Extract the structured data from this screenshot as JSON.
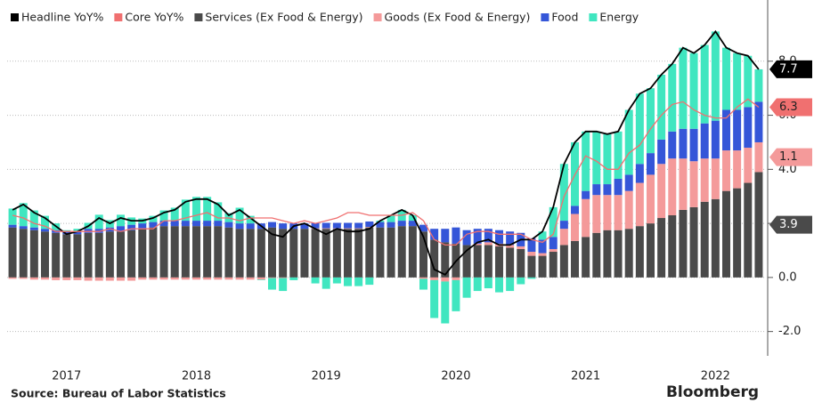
{
  "chart_data": {
    "type": "stacked_bar_line",
    "categories": [
      null,
      null,
      null,
      null,
      null,
      "2017",
      null,
      null,
      null,
      null,
      null,
      null,
      null,
      null,
      null,
      null,
      null,
      "2018",
      null,
      null,
      null,
      null,
      null,
      null,
      null,
      null,
      null,
      null,
      null,
      "2019",
      null,
      null,
      null,
      null,
      null,
      null,
      null,
      null,
      null,
      null,
      null,
      "2020",
      null,
      null,
      null,
      null,
      null,
      null,
      null,
      null,
      null,
      null,
      null,
      "2021",
      null,
      null,
      null,
      null,
      null,
      null,
      null,
      null,
      null,
      null,
      null,
      "2022",
      null,
      null,
      null,
      null
    ],
    "series": [
      {
        "name": "Headline YoY%",
        "type": "line",
        "color": "#000000",
        "values": [
          2.5,
          2.7,
          2.4,
          2.2,
          1.9,
          1.6,
          1.7,
          1.9,
          2.2,
          2.0,
          2.2,
          2.1,
          2.1,
          2.2,
          2.4,
          2.5,
          2.8,
          2.9,
          2.9,
          2.7,
          2.3,
          2.5,
          2.2,
          1.9,
          1.6,
          1.5,
          1.9,
          2.0,
          1.8,
          1.6,
          1.8,
          1.7,
          1.7,
          1.8,
          2.1,
          2.3,
          2.5,
          2.3,
          1.5,
          0.3,
          0.1,
          0.6,
          1.0,
          1.3,
          1.4,
          1.2,
          1.2,
          1.4,
          1.4,
          1.7,
          2.6,
          4.2,
          5.0,
          5.4,
          5.4,
          5.3,
          5.4,
          6.2,
          6.8,
          7.0,
          7.5,
          7.9,
          8.5,
          8.3,
          8.6,
          9.1,
          8.5,
          8.3,
          8.2,
          7.7
        ]
      },
      {
        "name": "Core YoY%",
        "type": "line",
        "color": "#f07070",
        "values": [
          2.3,
          2.2,
          2.0,
          1.9,
          1.7,
          1.7,
          1.7,
          1.7,
          1.7,
          1.8,
          1.7,
          1.8,
          1.8,
          1.8,
          2.1,
          2.1,
          2.2,
          2.3,
          2.4,
          2.2,
          2.2,
          2.1,
          2.2,
          2.2,
          2.2,
          2.1,
          2.0,
          2.1,
          2.0,
          2.1,
          2.2,
          2.4,
          2.4,
          2.3,
          2.3,
          2.3,
          2.3,
          2.4,
          2.1,
          1.4,
          1.2,
          1.2,
          1.6,
          1.7,
          1.7,
          1.6,
          1.6,
          1.6,
          1.4,
          1.3,
          1.6,
          3.0,
          3.8,
          4.5,
          4.3,
          4.0,
          4.0,
          4.6,
          4.9,
          5.5,
          6.0,
          6.4,
          6.5,
          6.2,
          6.0,
          5.9,
          5.9,
          6.3,
          6.6,
          6.3
        ]
      },
      {
        "name": "Services (Ex Food & Energy)",
        "type": "bar",
        "color": "#4a4a4a",
        "values": [
          1.85,
          1.8,
          1.75,
          1.7,
          1.65,
          1.6,
          1.6,
          1.65,
          1.65,
          1.7,
          1.7,
          1.75,
          1.8,
          1.85,
          1.9,
          1.9,
          1.9,
          1.9,
          1.9,
          1.9,
          1.85,
          1.8,
          1.8,
          1.8,
          1.85,
          1.8,
          1.8,
          1.8,
          1.8,
          1.8,
          1.8,
          1.8,
          1.8,
          1.85,
          1.85,
          1.85,
          1.9,
          1.9,
          1.7,
          1.4,
          1.3,
          1.25,
          1.2,
          1.2,
          1.2,
          1.15,
          1.1,
          1.05,
          0.8,
          0.8,
          0.95,
          1.2,
          1.35,
          1.5,
          1.65,
          1.75,
          1.75,
          1.8,
          1.9,
          2.0,
          2.2,
          2.3,
          2.5,
          2.6,
          2.8,
          2.9,
          3.2,
          3.3,
          3.5,
          3.9
        ]
      },
      {
        "name": "Goods (Ex Food & Energy)",
        "type": "bar",
        "color": "#f49a9a",
        "values": [
          -0.05,
          -0.05,
          -0.08,
          -0.08,
          -0.1,
          -0.1,
          -0.1,
          -0.12,
          -0.12,
          -0.12,
          -0.12,
          -0.12,
          -0.08,
          -0.08,
          -0.08,
          -0.08,
          -0.08,
          -0.08,
          -0.08,
          -0.08,
          -0.08,
          -0.08,
          -0.08,
          -0.08,
          -0.02,
          -0.02,
          0,
          0,
          0.02,
          0.02,
          0.02,
          0.02,
          0.02,
          0.02,
          0,
          0,
          0,
          0,
          -0.05,
          -0.1,
          -0.15,
          -0.1,
          0,
          0.05,
          0.1,
          0.1,
          0.1,
          0.1,
          0.15,
          0.1,
          0.1,
          0.6,
          1.0,
          1.4,
          1.4,
          1.3,
          1.3,
          1.4,
          1.6,
          1.8,
          2.0,
          2.1,
          1.9,
          1.7,
          1.6,
          1.5,
          1.5,
          1.4,
          1.3,
          1.1
        ]
      },
      {
        "name": "Food",
        "type": "bar",
        "color": "#3556d8",
        "values": [
          0.1,
          0.1,
          0.1,
          0.1,
          0.1,
          0.1,
          0.1,
          0.15,
          0.15,
          0.15,
          0.2,
          0.2,
          0.2,
          0.2,
          0.2,
          0.2,
          0.2,
          0.2,
          0.2,
          0.2,
          0.2,
          0.2,
          0.2,
          0.2,
          0.2,
          0.2,
          0.2,
          0.2,
          0.2,
          0.2,
          0.2,
          0.2,
          0.2,
          0.2,
          0.2,
          0.2,
          0.2,
          0.2,
          0.25,
          0.4,
          0.5,
          0.6,
          0.55,
          0.55,
          0.5,
          0.5,
          0.5,
          0.5,
          0.5,
          0.5,
          0.45,
          0.3,
          0.3,
          0.3,
          0.4,
          0.4,
          0.6,
          0.6,
          0.7,
          0.8,
          0.9,
          1.0,
          1.1,
          1.2,
          1.3,
          1.4,
          1.5,
          1.5,
          1.5,
          1.5
        ]
      },
      {
        "name": "Energy",
        "type": "bar",
        "color": "#40e6c0",
        "values": [
          0.6,
          0.85,
          0.63,
          0.48,
          0.25,
          0.05,
          0.1,
          0.22,
          0.52,
          0.27,
          0.42,
          0.27,
          0.18,
          0.23,
          0.38,
          0.48,
          0.78,
          0.88,
          0.88,
          0.68,
          0.33,
          0.58,
          0.28,
          -0.02,
          -0.43,
          -0.48,
          -0.1,
          0.0,
          -0.22,
          -0.42,
          -0.22,
          -0.32,
          -0.32,
          -0.27,
          0.05,
          0.25,
          0.4,
          0.2,
          -0.4,
          -1.4,
          -1.55,
          -1.15,
          -0.75,
          -0.5,
          -0.4,
          -0.55,
          -0.5,
          -0.25,
          -0.05,
          0.3,
          1.1,
          2.1,
          2.35,
          2.2,
          1.95,
          1.85,
          1.75,
          2.4,
          2.6,
          2.4,
          2.4,
          2.5,
          3.0,
          2.8,
          2.9,
          3.3,
          2.3,
          2.1,
          1.9,
          1.2
        ]
      }
    ],
    "ylim": [
      -2.9,
      10.1
    ],
    "yticks": [
      {
        "value": -2,
        "label": "-2.0"
      },
      {
        "value": 0,
        "label": "0.0"
      },
      {
        "value": 2,
        "label": "2.0"
      },
      {
        "value": 4,
        "label": "4.0"
      },
      {
        "value": 6,
        "label": "6.0"
      },
      {
        "value": 8,
        "label": "8.0"
      }
    ],
    "grid": true,
    "legend": "top-left",
    "source": "Source:  Bureau of Labor Statistics",
    "brand": "Bloomberg"
  }
}
